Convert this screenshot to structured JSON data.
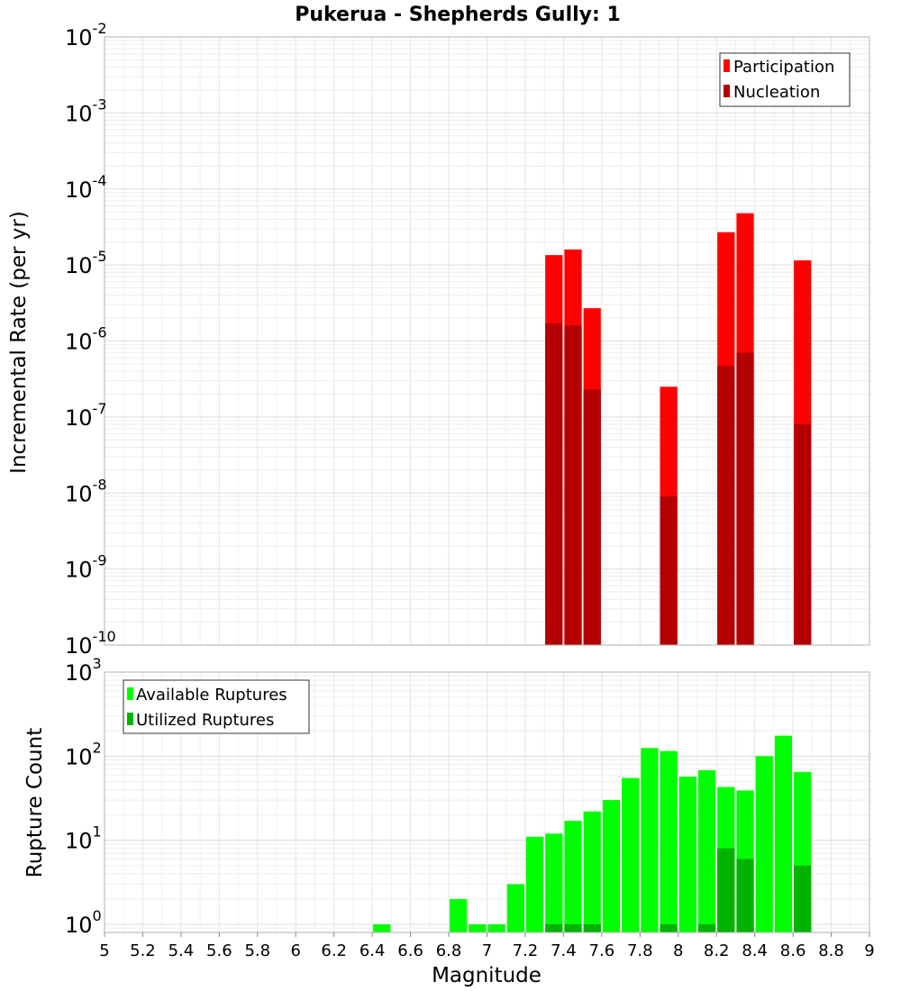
{
  "chart_data": [
    {
      "type": "bar",
      "title": "Pukerua - Shepherds Gully: 1",
      "xlabel": "",
      "ylabel": "Incremental Rate (per yr)",
      "xlim": [
        5,
        9
      ],
      "ylim": [
        1e-10,
        0.01
      ],
      "yscale": "log",
      "y_tick_exponents": [
        "-10",
        "-9",
        "-8",
        "-7",
        "-6",
        "-5",
        "-4",
        "-3",
        "-2"
      ],
      "y_tick_base": "10",
      "grid": true,
      "legend_position": "top-right",
      "bar_width": 0.1,
      "series": [
        {
          "name": "Participation",
          "color": "#ff0000",
          "x": [
            7.35,
            7.45,
            7.55,
            7.95,
            8.25,
            8.35,
            8.65
          ],
          "values": [
            1.35e-05,
            1.6e-05,
            2.7e-06,
            2.5e-07,
            2.7e-05,
            4.8e-05,
            1.15e-05
          ]
        },
        {
          "name": "Nucleation",
          "color": "#b30000",
          "x": [
            7.35,
            7.45,
            7.55,
            7.95,
            8.25,
            8.35,
            8.65
          ],
          "values": [
            1.7e-06,
            1.6e-06,
            2.3e-07,
            9e-09,
            4.7e-07,
            7e-07,
            8e-08
          ]
        }
      ]
    },
    {
      "type": "bar",
      "title": "",
      "xlabel": "Magnitude",
      "ylabel": "Rupture Count",
      "xlim": [
        5,
        9
      ],
      "ylim": [
        0.8,
        1000
      ],
      "yscale": "log",
      "y_tick_exponents": [
        "0",
        "1",
        "2",
        "3"
      ],
      "y_tick_base": "10",
      "x_ticks": [
        "5",
        "5.2",
        "5.4",
        "5.6",
        "5.8",
        "6",
        "6.2",
        "6.4",
        "6.6",
        "6.8",
        "7",
        "7.2",
        "7.4",
        "7.6",
        "7.8",
        "8",
        "8.2",
        "8.4",
        "8.6",
        "8.8",
        "9"
      ],
      "grid": true,
      "legend_position": "top-left",
      "bar_width": 0.1,
      "series": [
        {
          "name": "Available Ruptures",
          "color": "#00ff00",
          "x": [
            6.45,
            6.85,
            6.95,
            7.05,
            7.15,
            7.25,
            7.35,
            7.45,
            7.55,
            7.65,
            7.75,
            7.85,
            7.95,
            8.05,
            8.15,
            8.25,
            8.35,
            8.45,
            8.55,
            8.65
          ],
          "values": [
            1,
            2,
            1,
            1,
            3,
            11,
            12,
            17,
            22,
            30,
            55,
            125,
            115,
            57,
            68,
            43,
            39,
            100,
            175,
            65
          ]
        },
        {
          "name": "Utilized Ruptures",
          "color": "#00b300",
          "x": [
            7.35,
            7.45,
            7.55,
            7.95,
            8.15,
            8.25,
            8.35,
            8.65
          ],
          "values": [
            1,
            1,
            1,
            1,
            1,
            8,
            6,
            5
          ]
        }
      ]
    }
  ]
}
